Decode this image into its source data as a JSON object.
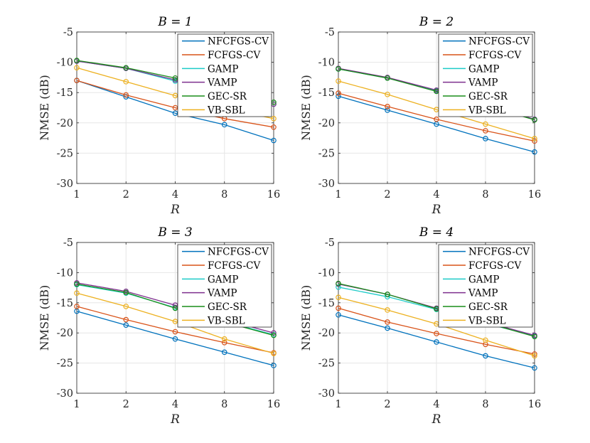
{
  "chart_data": [
    {
      "type": "line",
      "title": "B = 1",
      "xlabel": "R",
      "ylabel": "NMSE (dB)",
      "x": [
        1,
        2,
        4,
        8,
        16
      ],
      "xscale": "log2",
      "ylim": [
        -30,
        -5
      ],
      "yticks": [
        "-5",
        "-10",
        "-15",
        "-20",
        "-25",
        "-30"
      ],
      "xticks": [
        "1",
        "2",
        "4",
        "8",
        "16"
      ],
      "grid": true,
      "legend_position": "top-right",
      "series": [
        {
          "name": "NFCFGS-CV",
          "color": "#0072BD",
          "values": [
            -13.0,
            -15.7,
            -18.4,
            -20.3,
            -22.9
          ]
        },
        {
          "name": "FCFGS-CV",
          "color": "#D95319",
          "values": [
            -13.0,
            -15.4,
            -17.5,
            -19.3,
            -20.7
          ]
        },
        {
          "name": "GAMP",
          "color": "#1ECBC8",
          "values": [
            -9.8,
            -11.0,
            -13.1,
            -15.2,
            -16.9
          ]
        },
        {
          "name": "VAMP",
          "color": "#7E2F8E",
          "values": [
            -9.8,
            -11.0,
            -12.9,
            -15.0,
            -16.9
          ]
        },
        {
          "name": "GEC-SR",
          "color": "#1A8E1A",
          "values": [
            -9.7,
            -10.9,
            -12.6,
            -14.6,
            -16.6
          ]
        },
        {
          "name": "VB-SBL",
          "color": "#EDB120",
          "values": [
            -10.9,
            -13.2,
            -15.5,
            -17.6,
            -19.3
          ]
        }
      ]
    },
    {
      "type": "line",
      "title": "B = 2",
      "xlabel": "R",
      "ylabel": "NMSE (dB)",
      "x": [
        1,
        2,
        4,
        8,
        16
      ],
      "xscale": "log2",
      "ylim": [
        -30,
        -5
      ],
      "yticks": [
        "-5",
        "-10",
        "-15",
        "-20",
        "-25",
        "-30"
      ],
      "xticks": [
        "1",
        "2",
        "4",
        "8",
        "16"
      ],
      "grid": true,
      "legend_position": "top-right",
      "series": [
        {
          "name": "NFCFGS-CV",
          "color": "#0072BD",
          "values": [
            -15.6,
            -17.9,
            -20.2,
            -22.6,
            -24.8
          ]
        },
        {
          "name": "FCFGS-CV",
          "color": "#D95319",
          "values": [
            -15.1,
            -17.3,
            -19.4,
            -21.3,
            -23.0
          ]
        },
        {
          "name": "GAMP",
          "color": "#1ECBC8",
          "values": [
            -11.1,
            -12.6,
            -14.7,
            -17.1,
            -19.4
          ]
        },
        {
          "name": "VAMP",
          "color": "#7E2F8E",
          "values": [
            -11.0,
            -12.5,
            -14.6,
            -17.0,
            -19.4
          ]
        },
        {
          "name": "GEC-SR",
          "color": "#1A8E1A",
          "values": [
            -11.1,
            -12.6,
            -14.8,
            -17.2,
            -19.5
          ]
        },
        {
          "name": "VB-SBL",
          "color": "#EDB120",
          "values": [
            -13.1,
            -15.3,
            -17.8,
            -20.2,
            -22.6
          ]
        }
      ]
    },
    {
      "type": "line",
      "title": "B = 3",
      "xlabel": "R",
      "ylabel": "NMSE (dB)",
      "x": [
        1,
        2,
        4,
        8,
        16
      ],
      "xscale": "log2",
      "ylim": [
        -30,
        -5
      ],
      "yticks": [
        "-5",
        "-10",
        "-15",
        "-20",
        "-25",
        "-30"
      ],
      "xticks": [
        "1",
        "2",
        "4",
        "8",
        "16"
      ],
      "grid": true,
      "legend_position": "top-right",
      "series": [
        {
          "name": "NFCFGS-CV",
          "color": "#0072BD",
          "values": [
            -16.4,
            -18.7,
            -21.0,
            -23.2,
            -25.4
          ]
        },
        {
          "name": "FCFGS-CV",
          "color": "#D95319",
          "values": [
            -15.6,
            -17.8,
            -19.8,
            -21.6,
            -23.3
          ]
        },
        {
          "name": "GAMP",
          "color": "#1ECBC8",
          "values": [
            -12.0,
            -13.4,
            -15.8,
            -18.1,
            -20.3
          ]
        },
        {
          "name": "VAMP",
          "color": "#7E2F8E",
          "values": [
            -11.7,
            -13.1,
            -15.4,
            -17.8,
            -20.0
          ]
        },
        {
          "name": "GEC-SR",
          "color": "#1A8E1A",
          "values": [
            -11.9,
            -13.3,
            -15.9,
            -18.2,
            -20.4
          ]
        },
        {
          "name": "VB-SBL",
          "color": "#EDB120",
          "values": [
            -13.4,
            -15.6,
            -18.1,
            -21.0,
            -23.4
          ]
        }
      ]
    },
    {
      "type": "line",
      "title": "B = 4",
      "xlabel": "R",
      "ylabel": "NMSE (dB)",
      "x": [
        1,
        2,
        4,
        8,
        16
      ],
      "xscale": "log2",
      "ylim": [
        -30,
        -5
      ],
      "yticks": [
        "-5",
        "-10",
        "-15",
        "-20",
        "-25",
        "-30"
      ],
      "xticks": [
        "1",
        "2",
        "4",
        "8",
        "16"
      ],
      "grid": true,
      "legend_position": "top-right",
      "series": [
        {
          "name": "NFCFGS-CV",
          "color": "#0072BD",
          "values": [
            -17.0,
            -19.2,
            -21.5,
            -23.8,
            -25.8
          ]
        },
        {
          "name": "FCFGS-CV",
          "color": "#D95319",
          "values": [
            -15.9,
            -18.2,
            -20.1,
            -21.9,
            -23.5
          ]
        },
        {
          "name": "GAMP",
          "color": "#1ECBC8",
          "values": [
            -12.4,
            -14.0,
            -16.1,
            -18.4,
            -20.5
          ]
        },
        {
          "name": "VAMP",
          "color": "#7E2F8E",
          "values": [
            -11.9,
            -13.6,
            -15.9,
            -18.2,
            -20.4
          ]
        },
        {
          "name": "GEC-SR",
          "color": "#1A8E1A",
          "values": [
            -11.8,
            -13.6,
            -16.0,
            -18.3,
            -20.6
          ]
        },
        {
          "name": "VB-SBL",
          "color": "#EDB120",
          "values": [
            -14.1,
            -16.2,
            -18.5,
            -21.2,
            -23.8
          ]
        }
      ]
    }
  ]
}
